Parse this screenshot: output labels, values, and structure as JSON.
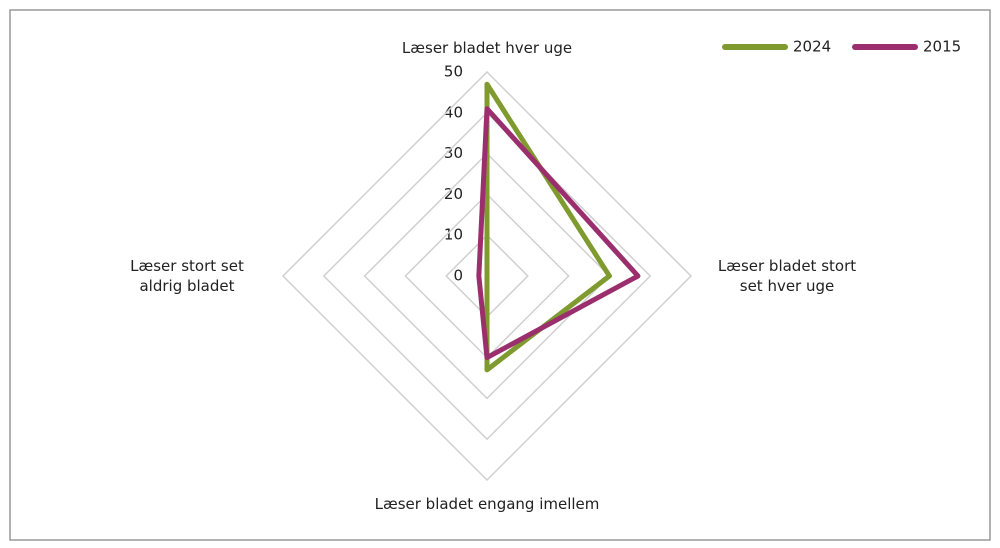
{
  "chart_data": {
    "type": "radar",
    "categories": [
      "Læser bladet hver uge",
      "Læser bladet stort set hver uge",
      "Læser bladet engang imellem",
      "Læser stort set aldrig bladet"
    ],
    "series": [
      {
        "name": "2024",
        "color": "#7f9a2e",
        "values": [
          47,
          30,
          23,
          0
        ]
      },
      {
        "name": "2015",
        "color": "#9b2f6e",
        "values": [
          41,
          37,
          20,
          2
        ]
      }
    ],
    "ylim": [
      0,
      50
    ],
    "yticks": [
      0,
      10,
      20,
      30,
      40,
      50
    ],
    "grid": true,
    "legend": "top-right"
  }
}
